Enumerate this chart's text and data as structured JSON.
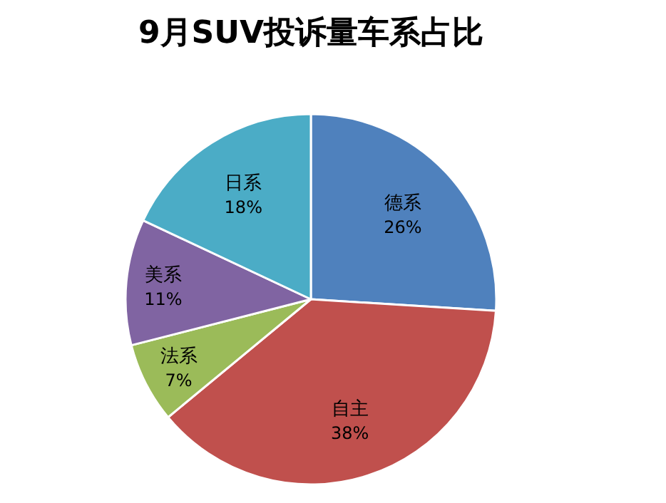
{
  "chart_data": {
    "type": "pie",
    "title": "9月SUV投诉量车系占比",
    "categories": [
      "德系",
      "自主",
      "法系",
      "美系",
      "日系"
    ],
    "values": [
      26,
      38,
      7,
      11,
      18
    ],
    "colors": [
      "#4f81bd",
      "#c0504d",
      "#9bbb59",
      "#8064a2",
      "#4bacc6"
    ],
    "value_labels": [
      "26%",
      "38%",
      "7%",
      "11%",
      "18%"
    ]
  }
}
